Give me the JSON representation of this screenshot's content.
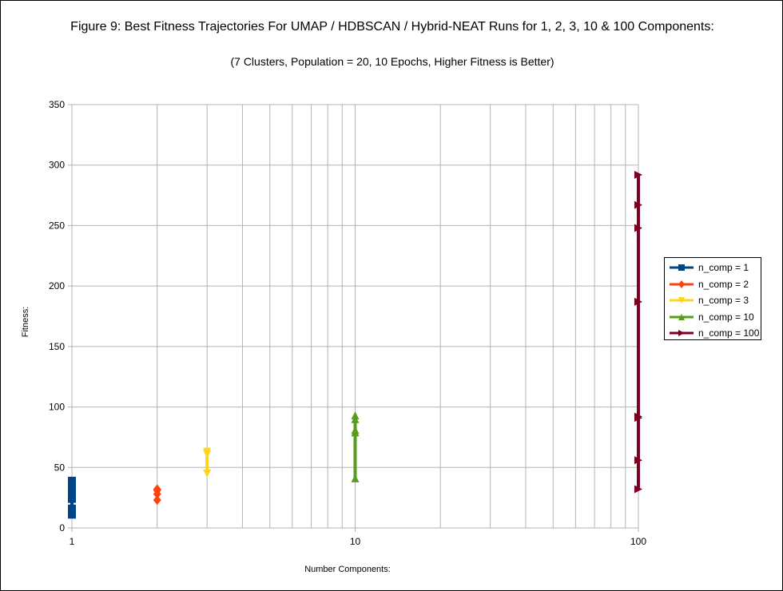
{
  "chart_data": {
    "type": "scatter",
    "title": "Figure 9: Best Fitness Trajectories For UMAP / HDBSCAN / Hybrid-NEAT Runs for 1, 2, 3, 10 & 100 Components:",
    "subtitle": "(7 Clusters, Population = 20, 10 Epochs, Higher Fitness is Better)",
    "xlabel": "Number Components:",
    "ylabel": "Fitness:",
    "x_scale": "log",
    "xlim": [
      1,
      100
    ],
    "ylim": [
      0,
      350
    ],
    "x_ticks": [
      "1",
      "10",
      "100"
    ],
    "y_ticks": [
      "0",
      "50",
      "100",
      "150",
      "200",
      "250",
      "300",
      "350"
    ],
    "grid": true,
    "legend_position": "right",
    "series": [
      {
        "name": "n_comp = 1",
        "color": "#004586",
        "marker": "square",
        "x": [
          1,
          1,
          1,
          1,
          1,
          1,
          1
        ],
        "y": [
          11,
          16,
          24,
          27,
          32,
          36,
          39
        ]
      },
      {
        "name": "n_comp = 2",
        "color": "#ff420e",
        "marker": "diamond",
        "x": [
          2,
          2,
          2,
          2
        ],
        "y": [
          23,
          28,
          31,
          32
        ]
      },
      {
        "name": "n_comp = 3",
        "color": "#ffd320",
        "marker": "triangle-down",
        "x": [
          3,
          3,
          3
        ],
        "y": [
          45,
          61,
          63
        ]
      },
      {
        "name": "n_comp = 10",
        "color": "#579d1c",
        "marker": "triangle-up",
        "x": [
          10,
          10,
          10,
          10,
          10
        ],
        "y": [
          41,
          79,
          81,
          90,
          93
        ]
      },
      {
        "name": "n_comp = 100",
        "color": "#7e0021",
        "marker": "triangle-right",
        "x": [
          100,
          100,
          100,
          100,
          100,
          100,
          100,
          100
        ],
        "y": [
          32,
          56,
          91,
          92,
          187,
          248,
          267,
          292
        ]
      }
    ]
  }
}
